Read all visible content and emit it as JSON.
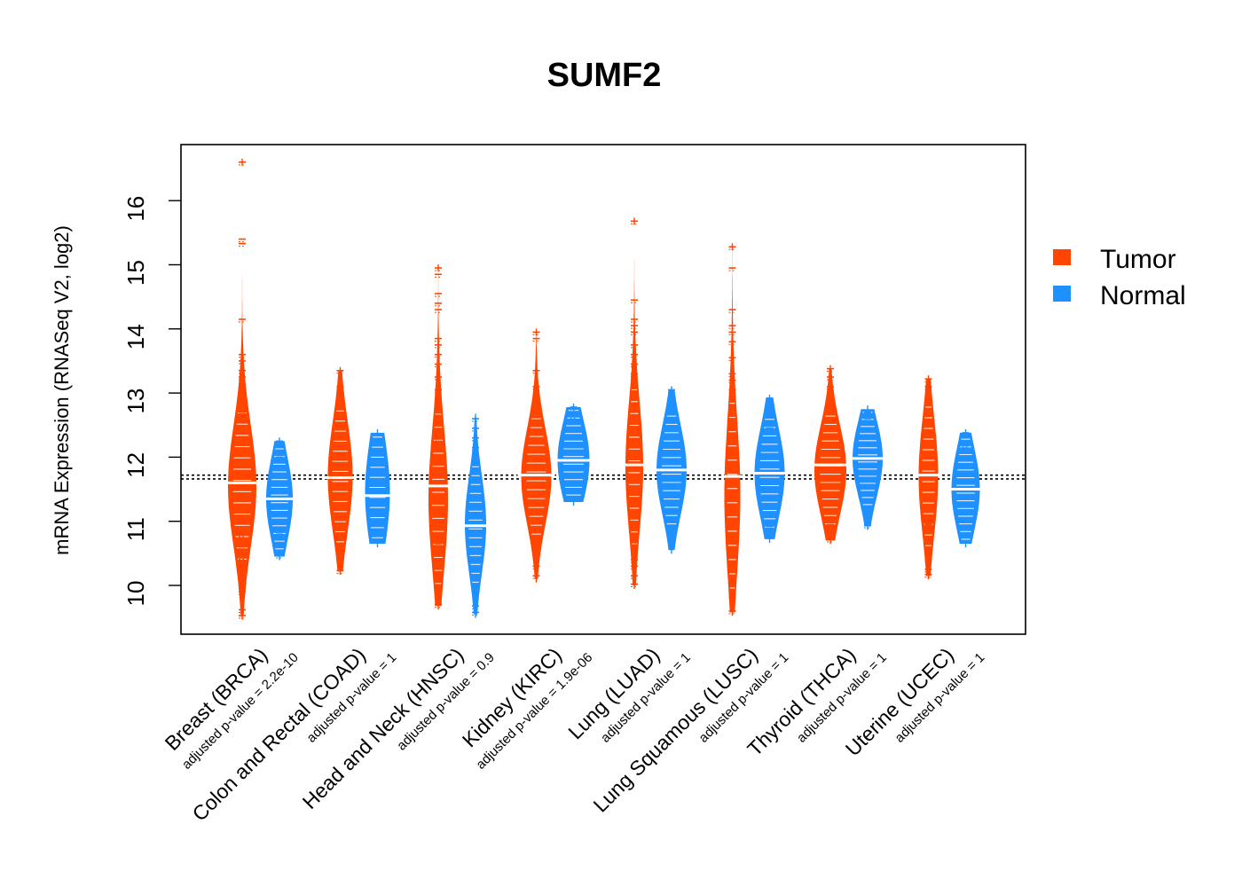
{
  "chart_data": {
    "type": "beanplot",
    "title": "SUMF2",
    "ylabel": "mRNA Expression (RNASeq V2, log2)",
    "ylim": [
      9.25,
      16.9
    ],
    "yticks": [
      10,
      11,
      12,
      13,
      14,
      15,
      16
    ],
    "reference_lines": [
      11.66,
      11.72
    ],
    "colors": {
      "Tumor": "#ff4500",
      "Normal": "#1e90ff"
    },
    "legend": [
      {
        "name": "Tumor",
        "color": "#ff4500"
      },
      {
        "name": "Normal",
        "color": "#1e90ff"
      }
    ],
    "legend_position": "right",
    "categories": [
      {
        "label": "Breast (BRCA)",
        "pvalue": "adjusted p-value = 2.2e-10",
        "tumor": {
          "median": 11.6,
          "center": 11.55,
          "width": 0.8,
          "spread": 0.95,
          "min": 9.52,
          "max": 16.6,
          "outliers": [
            16.6,
            15.4,
            15.33,
            14.15,
            13.6,
            13.5,
            13.35,
            13.25,
            13.1,
            13.0,
            12.85,
            12.7,
            10.8,
            10.6,
            10.45,
            10.3,
            10.15,
            10.05,
            9.9,
            9.62,
            9.53
          ]
        },
        "normal": {
          "median": 11.35,
          "center": 11.35,
          "width": 0.75,
          "spread": 0.65,
          "min": 10.45,
          "max": 12.25,
          "outliers": [
            12.25,
            12.15,
            12.0,
            10.8,
            10.47
          ]
        }
      },
      {
        "label": "Colon and Rectal (COAD)",
        "pvalue": "adjusted p-value = 1",
        "tumor": {
          "median": 11.68,
          "center": 11.7,
          "width": 0.7,
          "spread": 0.85,
          "min": 10.22,
          "max": 13.35,
          "outliers": [
            13.35,
            13.1,
            13.0,
            12.85,
            12.7,
            10.9,
            10.75,
            10.6,
            10.45,
            10.23
          ]
        },
        "normal": {
          "median": 11.4,
          "center": 11.45,
          "width": 0.7,
          "spread": 0.85,
          "min": 10.65,
          "max": 12.38,
          "outliers": [
            10.8,
            10.7
          ]
        }
      },
      {
        "label": "Head and Neck (HNSC)",
        "pvalue": "adjusted p-value = 0.9",
        "tumor": {
          "median": 11.55,
          "center": 11.35,
          "width": 0.55,
          "spread": 1.1,
          "min": 9.68,
          "max": 14.95,
          "outliers": [
            14.95,
            14.85,
            14.55,
            14.4,
            14.3,
            13.85,
            13.75,
            13.6,
            13.45,
            13.25,
            13.05,
            12.9,
            12.7,
            12.55,
            12.4,
            12.25,
            10.65,
            10.5,
            10.4,
            10.3,
            10.15,
            9.95,
            9.85,
            9.7
          ]
        },
        "normal": {
          "median": 10.93,
          "center": 10.95,
          "width": 0.6,
          "spread": 0.75,
          "min": 9.55,
          "max": 12.62,
          "outliers": [
            12.6,
            12.45,
            12.3,
            12.15,
            11.95,
            11.8,
            9.68,
            9.58
          ]
        }
      },
      {
        "label": "Kidney (KIRC)",
        "pvalue": "adjusted p-value = 1.9e-06",
        "tumor": {
          "median": 11.72,
          "center": 11.7,
          "width": 0.85,
          "spread": 0.75,
          "min": 10.1,
          "max": 13.95,
          "outliers": [
            13.95,
            13.85,
            13.35,
            13.1,
            12.95,
            12.85,
            10.9,
            10.75,
            10.6,
            10.45,
            10.3,
            10.15
          ]
        },
        "normal": {
          "median": 11.95,
          "center": 11.95,
          "width": 0.9,
          "spread": 0.65,
          "min": 11.3,
          "max": 12.78,
          "outliers": [
            12.78,
            12.65
          ]
        }
      },
      {
        "label": "Lung (LUAD)",
        "pvalue": "adjusted p-value = 1",
        "tumor": {
          "median": 11.88,
          "center": 11.85,
          "width": 0.5,
          "spread": 1.0,
          "min": 10.0,
          "max": 15.68,
          "outliers": [
            15.68,
            14.45,
            14.15,
            14.05,
            13.95,
            13.75,
            13.6,
            13.45,
            13.3,
            13.15,
            13.0,
            10.95,
            10.8,
            10.7,
            10.55,
            10.4,
            10.3,
            10.15,
            10.02
          ]
        },
        "normal": {
          "median": 11.8,
          "center": 11.8,
          "width": 0.85,
          "spread": 0.7,
          "min": 10.55,
          "max": 13.05,
          "outliers": [
            13.05,
            12.85,
            12.7,
            10.82
          ]
        }
      },
      {
        "label": "Lung Squamous (LUSC)",
        "pvalue": "adjusted p-value = 1",
        "tumor": {
          "median": 11.7,
          "center": 11.4,
          "width": 0.45,
          "spread": 1.2,
          "min": 9.58,
          "max": 15.28,
          "outliers": [
            15.28,
            14.95,
            14.3,
            14.05,
            13.95,
            13.8,
            13.55,
            13.3,
            13.2,
            13.05,
            12.9,
            12.75,
            12.6,
            10.65,
            10.5,
            10.35,
            10.2,
            10.05,
            9.85,
            9.6
          ]
        },
        "normal": {
          "median": 11.75,
          "center": 11.75,
          "width": 0.85,
          "spread": 0.7,
          "min": 10.72,
          "max": 12.92,
          "outliers": [
            12.92,
            12.72,
            12.45,
            10.92
          ]
        }
      },
      {
        "label": "Thyroid (THCA)",
        "pvalue": "adjusted p-value = 1",
        "tumor": {
          "median": 11.88,
          "center": 11.8,
          "width": 0.9,
          "spread": 0.7,
          "min": 10.7,
          "max": 13.38,
          "outliers": [
            13.38,
            13.25,
            13.1,
            12.95,
            12.8,
            12.7,
            11.05,
            10.95,
            10.72
          ]
        },
        "normal": {
          "median": 11.98,
          "center": 11.98,
          "width": 0.85,
          "spread": 0.6,
          "min": 10.92,
          "max": 12.75,
          "outliers": [
            12.7,
            12.6,
            11.0,
            10.94
          ]
        }
      },
      {
        "label": "Uterine (UCEC)",
        "pvalue": "adjusted p-value = 1",
        "tumor": {
          "median": 11.72,
          "center": 11.7,
          "width": 0.55,
          "spread": 0.9,
          "min": 10.15,
          "max": 13.22,
          "outliers": [
            13.22,
            13.1,
            12.95,
            12.85,
            12.7,
            10.95,
            10.85,
            10.7,
            10.55,
            10.4,
            10.25,
            10.17
          ]
        },
        "normal": {
          "median": 11.5,
          "center": 11.5,
          "width": 0.8,
          "spread": 0.65,
          "min": 10.65,
          "max": 12.38,
          "outliers": [
            12.38,
            12.2
          ]
        }
      }
    ]
  }
}
